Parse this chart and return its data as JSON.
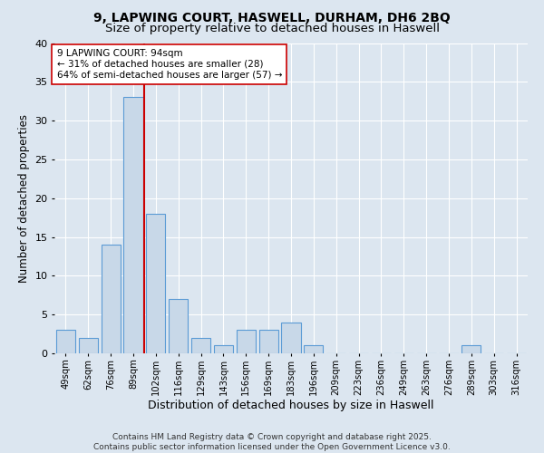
{
  "title_line1": "9, LAPWING COURT, HASWELL, DURHAM, DH6 2BQ",
  "title_line2": "Size of property relative to detached houses in Haswell",
  "xlabel": "Distribution of detached houses by size in Haswell",
  "ylabel": "Number of detached properties",
  "bin_labels": [
    "49sqm",
    "62sqm",
    "76sqm",
    "89sqm",
    "102sqm",
    "116sqm",
    "129sqm",
    "143sqm",
    "156sqm",
    "169sqm",
    "183sqm",
    "196sqm",
    "209sqm",
    "223sqm",
    "236sqm",
    "249sqm",
    "263sqm",
    "276sqm",
    "289sqm",
    "303sqm",
    "316sqm"
  ],
  "bar_values": [
    3,
    2,
    14,
    33,
    18,
    7,
    2,
    1,
    3,
    3,
    4,
    1,
    0,
    0,
    0,
    0,
    0,
    0,
    1,
    0,
    0
  ],
  "bar_color": "#c8d8e8",
  "bar_edgecolor": "#5b9bd5",
  "bar_linewidth": 0.8,
  "redline_index": 3.5,
  "redline_color": "#cc0000",
  "annotation_text": "9 LAPWING COURT: 94sqm\n← 31% of detached houses are smaller (28)\n64% of semi-detached houses are larger (57) →",
  "annotation_fontsize": 7.5,
  "annotation_box_color": "#ffffff",
  "annotation_box_edgecolor": "#cc0000",
  "ylim": [
    0,
    40
  ],
  "yticks": [
    0,
    5,
    10,
    15,
    20,
    25,
    30,
    35,
    40
  ],
  "background_color": "#dce6f0",
  "plot_bg_color": "#dce6f0",
  "grid_color": "#ffffff",
  "footer_text": "Contains HM Land Registry data © Crown copyright and database right 2025.\nContains public sector information licensed under the Open Government Licence v3.0.",
  "title_fontsize": 10,
  "subtitle_fontsize": 9.5,
  "xlabel_fontsize": 9,
  "ylabel_fontsize": 8.5,
  "footer_fontsize": 6.5
}
